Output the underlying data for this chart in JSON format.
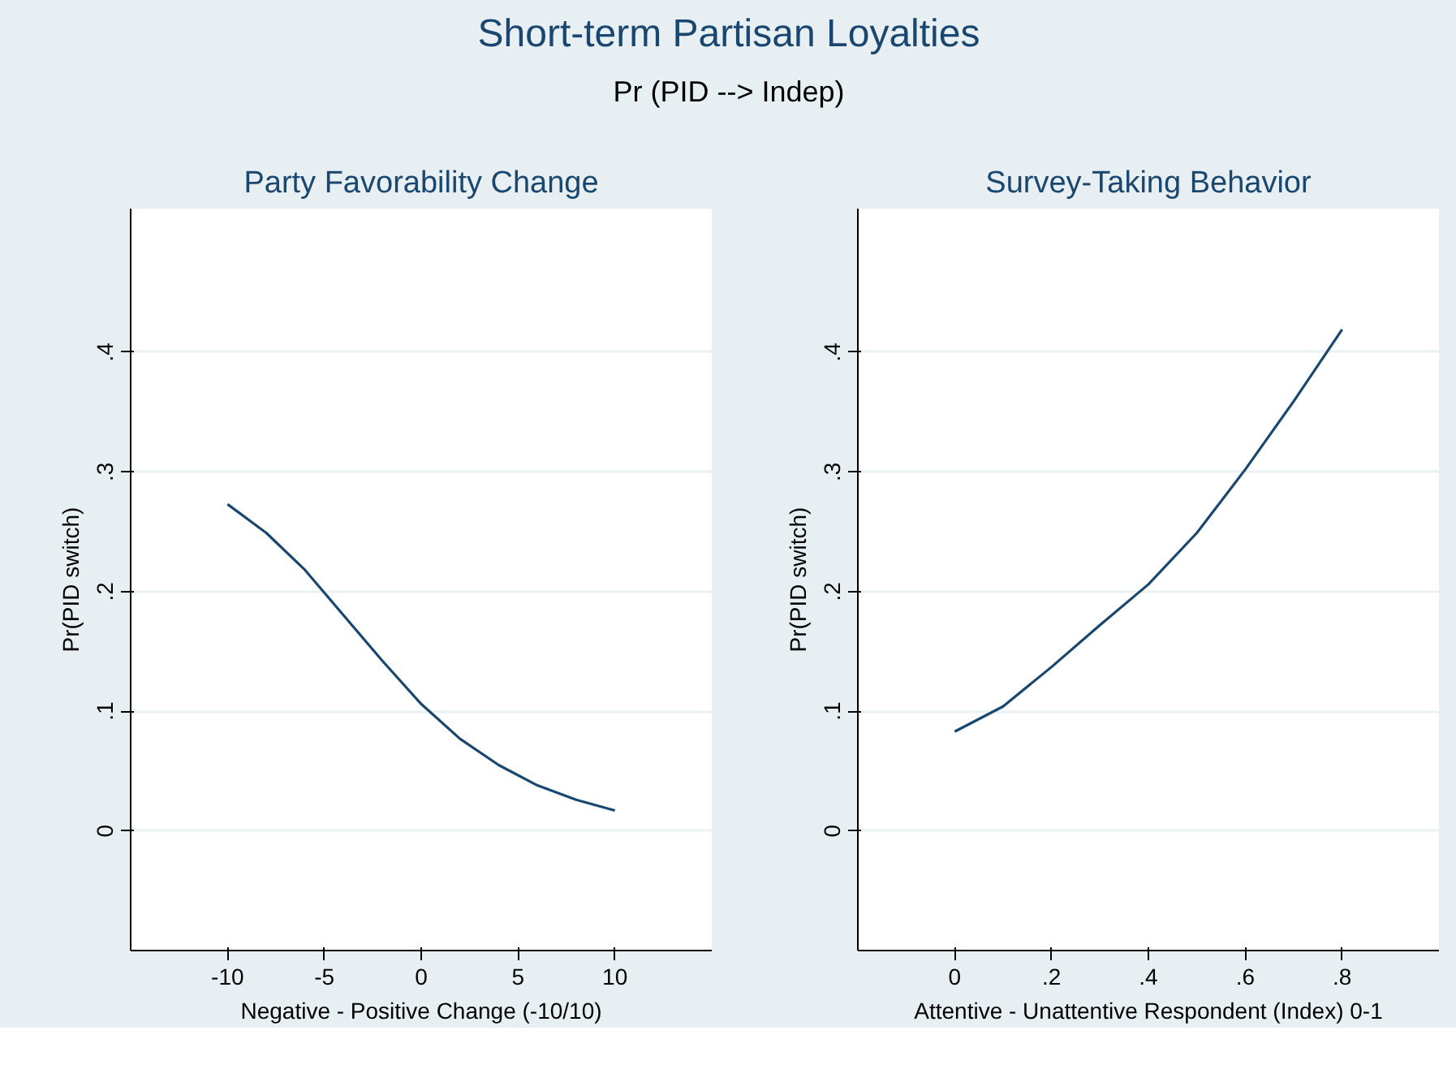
{
  "chart_data": [
    {
      "type": "other",
      "title": "Short-term Partisan Loyalties",
      "subtitle": "Pr (PID --> Indep)"
    },
    {
      "type": "line",
      "title": "Party Favorability Change",
      "xlabel": "Negative - Positive Change (-10/10)",
      "ylabel": "Pr(PID switch)",
      "x": [
        -10,
        -8,
        -6,
        -4,
        -2,
        0,
        2,
        4,
        6,
        8,
        10
      ],
      "series": [
        {
          "color": "#1a476f",
          "values": [
            0.273,
            0.249,
            0.218,
            0.18,
            0.142,
            0.106,
            0.077,
            0.055,
            0.038,
            0.026,
            0.017
          ]
        }
      ],
      "xlim": [
        -15,
        15
      ],
      "xticks": [
        -10,
        -5,
        0,
        5,
        10
      ],
      "ylim": [
        -0.1,
        0.52
      ],
      "yticks": [
        {
          "value": 0,
          "label": "0"
        },
        {
          "value": 0.1,
          "label": ".1"
        },
        {
          "value": 0.2,
          "label": ".2"
        },
        {
          "value": 0.3,
          "label": ".3"
        },
        {
          "value": 0.4,
          "label": ".4"
        }
      ],
      "grid": "y",
      "marker": "none",
      "line_style": "solid"
    },
    {
      "type": "line",
      "title": "Survey-Taking Behavior",
      "xlabel": "Attentive - Unattentive Respondent (Index) 0-1",
      "ylabel": "Pr(PID switch)",
      "x": [
        0,
        0.1,
        0.2,
        0.3,
        0.4,
        0.5,
        0.6,
        0.7,
        0.8
      ],
      "series": [
        {
          "color": "#1a476f",
          "values": [
            0.083,
            0.104,
            0.137,
            0.172,
            0.206,
            0.249,
            0.302,
            0.359,
            0.419
          ]
        }
      ],
      "xlim": [
        -0.2,
        1.0
      ],
      "xticks": [
        0,
        {
          "value": 0.2,
          "label": ".2"
        },
        {
          "value": 0.4,
          "label": ".4"
        },
        {
          "value": 0.6,
          "label": ".6"
        },
        {
          "value": 0.8,
          "label": ".8"
        }
      ],
      "ylim": [
        -0.1,
        0.52
      ],
      "yticks": [
        {
          "value": 0,
          "label": "0"
        },
        {
          "value": 0.1,
          "label": ".1"
        },
        {
          "value": 0.2,
          "label": ".2"
        },
        {
          "value": 0.3,
          "label": ".3"
        },
        {
          "value": 0.4,
          "label": ".4"
        }
      ],
      "grid": "y",
      "marker": "none",
      "line_style": "solid"
    }
  ]
}
